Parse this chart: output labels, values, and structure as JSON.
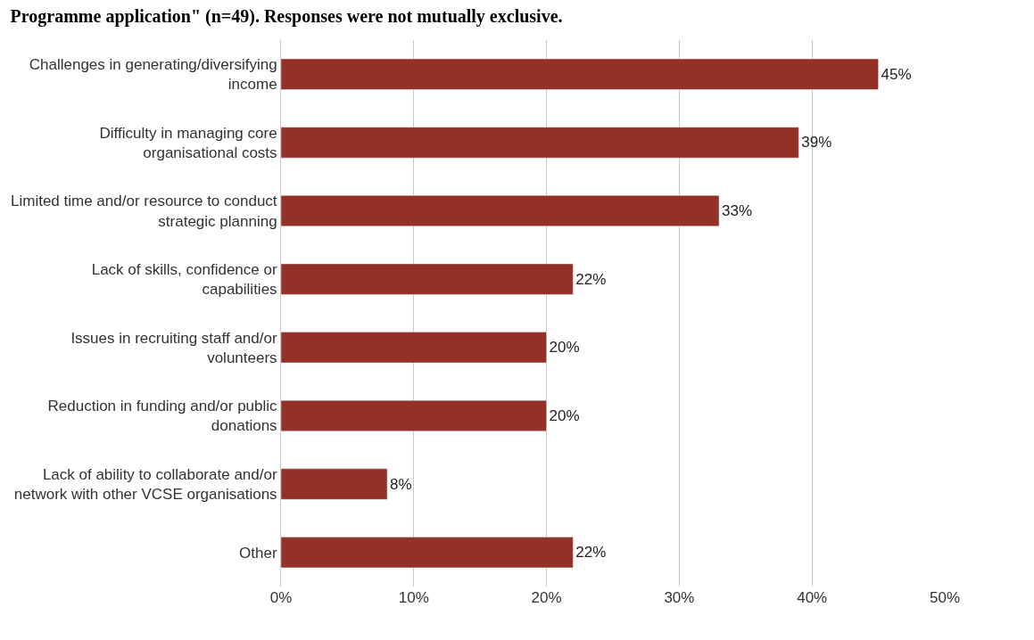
{
  "chart_data": {
    "type": "bar",
    "orientation": "horizontal",
    "title": "Programme application\" (n=49). Responses were not mutually exclusive.",
    "categories": [
      "Challenges in generating/diversifying income",
      "Difficulty in managing core organisational costs",
      "Limited time and/or resource to conduct strategic planning",
      "Lack of skills, confidence or capabilities",
      "Issues in recruiting staff and/or volunteers",
      "Reduction in funding and/or public donations",
      "Lack of ability to collaborate and/or network with other VCSE organisations",
      "Other"
    ],
    "values": [
      45,
      39,
      33,
      22,
      20,
      20,
      8,
      22
    ],
    "value_labels": [
      "45%",
      "39%",
      "33%",
      "22%",
      "20%",
      "20%",
      "8%",
      "22%"
    ],
    "color": "#943126",
    "xlim": [
      0,
      50
    ],
    "xticks": [
      {
        "value": 0,
        "label": "0%"
      },
      {
        "value": 10,
        "label": "10%"
      },
      {
        "value": 20,
        "label": "20%"
      },
      {
        "value": 30,
        "label": "30%"
      },
      {
        "value": 40,
        "label": "40%"
      },
      {
        "value": 50,
        "label": "50%"
      }
    ],
    "grid": "x",
    "legend": false
  }
}
